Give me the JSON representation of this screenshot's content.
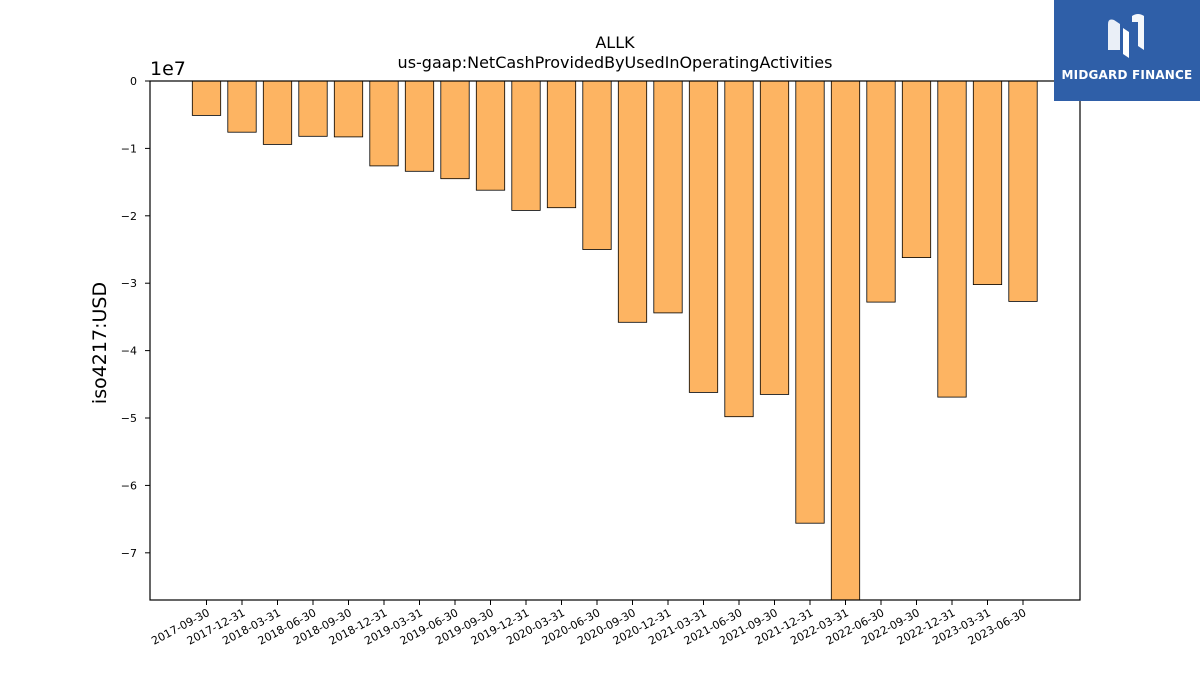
{
  "brand": {
    "name": "MIDGARD FINANCE",
    "color": "#2f5fa8",
    "logo_icon": "midgard-m-logo"
  },
  "chart_data": {
    "type": "bar",
    "title": "ALLK",
    "subtitle": "us-gaap:NetCashProvidedByUsedInOperatingActivities",
    "ylabel": "iso4217:USD",
    "xlabel": "",
    "y_offset_label": "1e7",
    "bar_color": "#fdb462",
    "edge_color": "#000000",
    "ylim": [
      -7.7,
      0
    ],
    "y_ticks": [
      0,
      -1,
      -2,
      -3,
      -4,
      -5,
      -6,
      -7
    ],
    "y_tick_labels": [
      "0",
      "−1",
      "−2",
      "−3",
      "−4",
      "−5",
      "−6",
      "−7"
    ],
    "categories": [
      "2017-09-30",
      "2017-12-31",
      "2018-03-31",
      "2018-06-30",
      "2018-09-30",
      "2018-12-31",
      "2019-03-31",
      "2019-06-30",
      "2019-09-30",
      "2019-12-31",
      "2020-03-31",
      "2020-06-30",
      "2020-09-30",
      "2020-12-31",
      "2021-03-31",
      "2021-06-30",
      "2021-09-30",
      "2021-12-31",
      "2022-03-31",
      "2022-06-30",
      "2022-09-30",
      "2022-12-31",
      "2023-03-31",
      "2023-06-30"
    ],
    "values": [
      -0.51,
      -0.76,
      -0.94,
      -0.82,
      -0.83,
      -1.26,
      -1.34,
      -1.45,
      -1.62,
      -1.92,
      -1.88,
      -2.5,
      -3.58,
      -3.44,
      -4.62,
      -4.98,
      -4.65,
      -6.56,
      -7.75,
      -3.28,
      -2.62,
      -4.69,
      -3.02,
      -3.27
    ],
    "grid": false,
    "legend": "none"
  }
}
